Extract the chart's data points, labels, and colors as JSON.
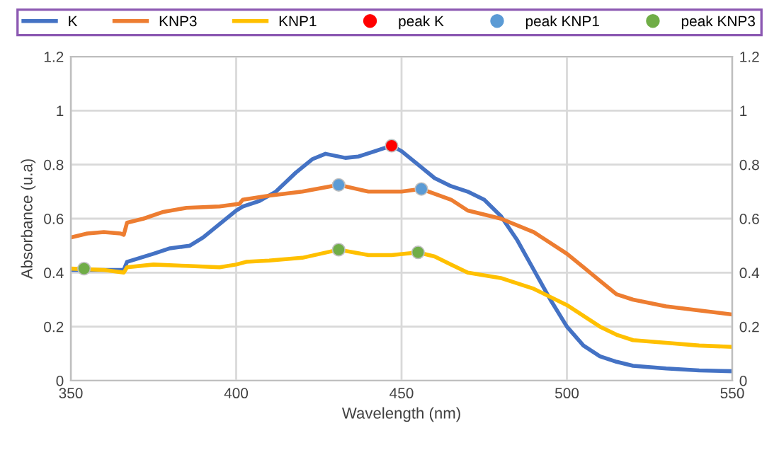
{
  "chart_data": {
    "type": "line",
    "xlabel": "Wavelength (nm)",
    "ylabel": "Absorbance (u.a)",
    "xlim": [
      350,
      550
    ],
    "xticks": [
      350,
      400,
      450,
      500,
      550
    ],
    "ylim": [
      0,
      1.2
    ],
    "yticks": [
      0,
      0.2,
      0.4,
      0.6,
      0.8,
      {
        "value": 1,
        "label": "1"
      },
      {
        "value": 1.2,
        "label": "1.2"
      }
    ],
    "y2lim": [
      0,
      1.2
    ],
    "y2ticks": [
      0,
      0.2,
      0.4,
      0.6,
      0.8,
      {
        "value": 1,
        "label": "1"
      },
      {
        "value": 1.2,
        "label": "1.2"
      }
    ],
    "grid": true,
    "legend": "top",
    "series": [
      {
        "name": "K",
        "color": "#4472c4",
        "x": [
          350,
          366,
          367,
          375,
          380,
          386,
          390,
          395,
          400,
          402,
          407,
          412,
          418,
          423,
          427,
          433,
          437,
          442,
          447,
          450,
          455,
          460,
          465,
          470,
          475,
          480,
          485,
          490,
          495,
          500,
          505,
          510,
          515,
          520,
          530,
          540,
          550
        ],
        "values": [
          0.41,
          0.41,
          0.44,
          0.47,
          0.49,
          0.5,
          0.53,
          0.58,
          0.63,
          0.645,
          0.665,
          0.7,
          0.77,
          0.82,
          0.84,
          0.825,
          0.83,
          0.85,
          0.87,
          0.85,
          0.8,
          0.75,
          0.72,
          0.7,
          0.67,
          0.61,
          0.52,
          0.41,
          0.3,
          0.2,
          0.13,
          0.09,
          0.07,
          0.055,
          0.045,
          0.038,
          0.035
        ]
      },
      {
        "name": "KNP3",
        "color": "#ed7d31",
        "x": [
          350,
          355,
          360,
          365,
          366,
          367,
          372,
          378,
          385,
          395,
          401,
          402,
          410,
          420,
          431,
          440,
          450,
          456,
          465,
          470,
          480,
          490,
          500,
          505,
          510,
          515,
          520,
          530,
          540,
          550
        ],
        "values": [
          0.53,
          0.545,
          0.55,
          0.545,
          0.54,
          0.585,
          0.6,
          0.625,
          0.64,
          0.645,
          0.655,
          0.67,
          0.685,
          0.7,
          0.725,
          0.7,
          0.7,
          0.71,
          0.67,
          0.63,
          0.6,
          0.55,
          0.47,
          0.42,
          0.37,
          0.32,
          0.3,
          0.275,
          0.26,
          0.245
        ]
      },
      {
        "name": "KNP1",
        "color": "#ffc000",
        "x": [
          350,
          360,
          366,
          367,
          375,
          385,
          395,
          400,
          403,
          410,
          420,
          431,
          440,
          447,
          455,
          460,
          465,
          470,
          480,
          490,
          500,
          505,
          510,
          515,
          520,
          530,
          540,
          550
        ],
        "values": [
          0.415,
          0.41,
          0.4,
          0.42,
          0.43,
          0.425,
          0.42,
          0.43,
          0.44,
          0.445,
          0.455,
          0.485,
          0.465,
          0.465,
          0.475,
          0.46,
          0.43,
          0.4,
          0.38,
          0.34,
          0.28,
          0.24,
          0.2,
          0.17,
          0.15,
          0.14,
          0.13,
          0.125
        ]
      },
      {
        "name": "peak K",
        "type": "scatter",
        "color": "#ff0000",
        "x": [
          447
        ],
        "values": [
          0.87
        ]
      },
      {
        "name": "peak KNP1",
        "type": "scatter",
        "color": "#5b9bd5",
        "x": [
          431,
          456
        ],
        "values": [
          0.725,
          0.71
        ]
      },
      {
        "name": "peak KNP3",
        "type": "scatter",
        "color": "#70ad47",
        "x": [
          354,
          431,
          455
        ],
        "values": [
          0.415,
          0.485,
          0.475
        ]
      }
    ]
  }
}
